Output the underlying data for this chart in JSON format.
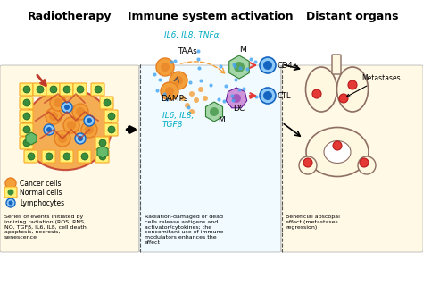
{
  "title_radiotherapy": "Radiotherapy",
  "title_immune": "Immune system activation",
  "title_distant": "Distant organs",
  "panel1_caption": "Series of events initiated by\nionizing radiation (ROS, RNS,\nNO, TGFβ, IL6, IL8, cell death,\napoptosis, necrosis,\nsenescence",
  "panel2_caption": "Radiation-damaged or dead\ncells release antigens and\nactivator/cytokines; the\nconcomitant use of immune\nmodulators enhances the\neffect",
  "panel3_caption": "Beneficial abscopal\neffect (metastases\nregression)",
  "legend_cancer": "Cancer cells",
  "legend_normal": "Normal cells",
  "legend_lympho": "Lymphocytes",
  "il6_top": "IL6, IL8, TNFα",
  "taas": "TAAs",
  "damps": "DAMPs",
  "il6_bot": "IL6, IL8,\nTGFβ",
  "m_top": "M",
  "m_bot": "M",
  "dc": "DC",
  "cd4": "CD4+",
  "ctl": "CTL",
  "metastases": "Metastases",
  "bg_color": "#ffffff",
  "panel_bg": "#fffde7",
  "orange_cell": "#f4a03a",
  "green_cell": "#4caf50",
  "blue_cell": "#1565c0",
  "damp_color": "#f4a03a",
  "arrow_color": "#333333",
  "cyan_text": "#00acc1",
  "red_arrow": "#e53935",
  "divider_color": "#555555"
}
